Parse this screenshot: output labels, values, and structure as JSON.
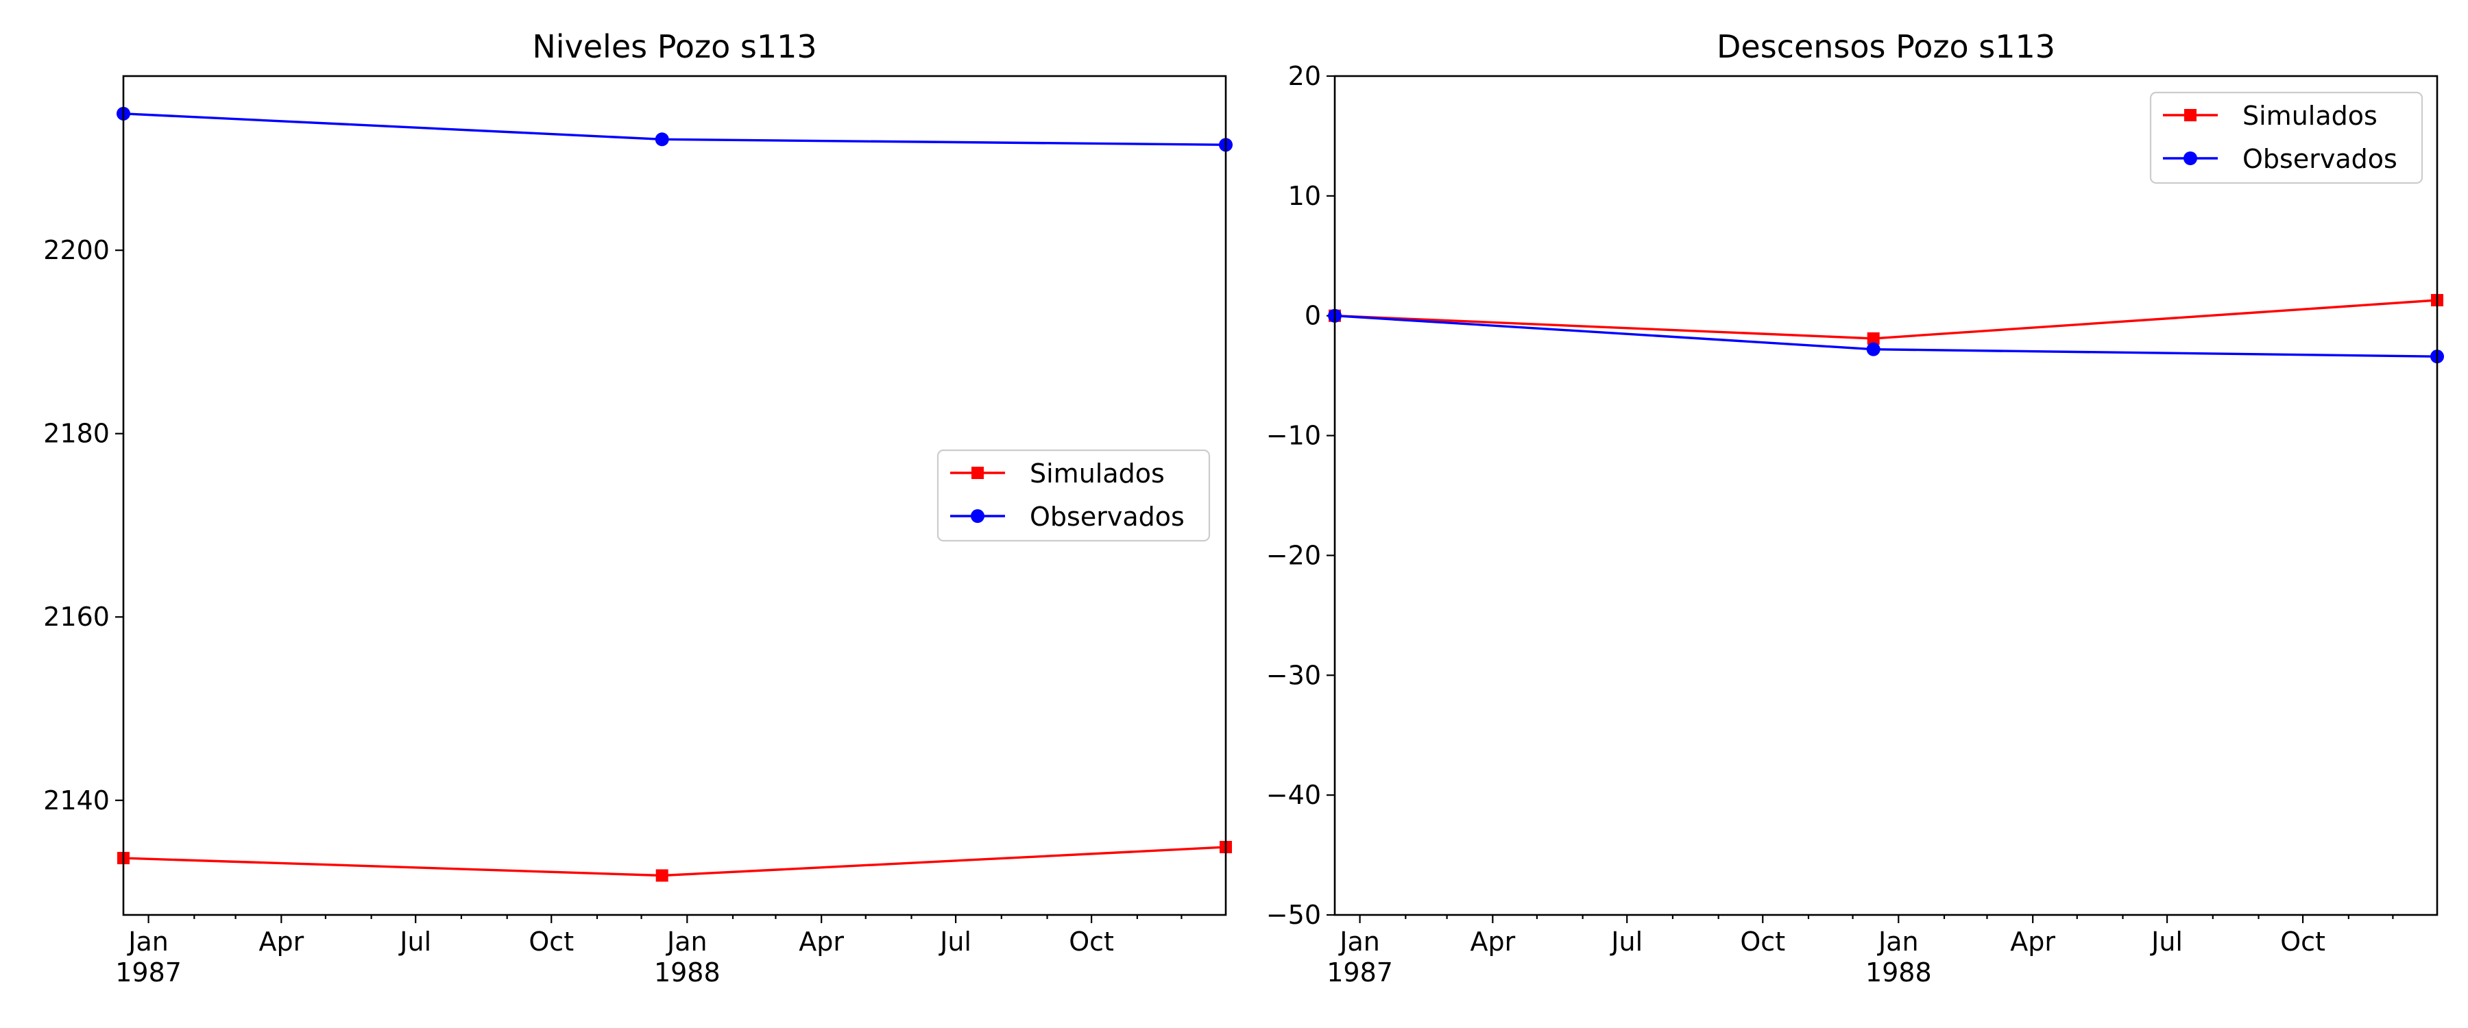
{
  "colors": {
    "simulados": "#ff0000",
    "observados": "#0000ff"
  },
  "chart_data": [
    {
      "type": "line",
      "title": "Niveles Pozo s113",
      "xlabel": "",
      "ylabel": "",
      "x_axis": "date",
      "xlim": [
        "1986-12-15",
        "1988-12-31"
      ],
      "ylim": [
        2127.5,
        2219
      ],
      "yticks": [
        2140,
        2160,
        2180,
        2200
      ],
      "xticks": [
        {
          "date": "1987-01-01",
          "label": "Jan",
          "year": "1987"
        },
        {
          "date": "1987-04-01",
          "label": "Apr",
          "year": ""
        },
        {
          "date": "1987-07-01",
          "label": "Jul",
          "year": ""
        },
        {
          "date": "1987-10-01",
          "label": "Oct",
          "year": ""
        },
        {
          "date": "1988-01-01",
          "label": "Jan",
          "year": "1988"
        },
        {
          "date": "1988-04-01",
          "label": "Apr",
          "year": ""
        },
        {
          "date": "1988-07-01",
          "label": "Jul",
          "year": ""
        },
        {
          "date": "1988-10-01",
          "label": "Oct",
          "year": ""
        }
      ],
      "legend": "center-right",
      "grid": false,
      "series": [
        {
          "name": "Simulados",
          "color": "#ff0000",
          "marker": "square",
          "points": [
            [
              "1986-12-15",
              2133.7
            ],
            [
              "1987-12-15",
              2131.8
            ],
            [
              "1988-12-31",
              2134.9
            ]
          ]
        },
        {
          "name": "Observados",
          "color": "#0000ff",
          "marker": "circle",
          "points": [
            [
              "1986-12-15",
              2214.9
            ],
            [
              "1987-12-15",
              2212.1
            ],
            [
              "1988-12-31",
              2211.5
            ]
          ]
        }
      ]
    },
    {
      "type": "line",
      "title": "Descensos Pozo s113",
      "xlabel": "",
      "ylabel": "",
      "x_axis": "date",
      "xlim": [
        "1986-12-15",
        "1988-12-31"
      ],
      "ylim": [
        -50,
        20
      ],
      "yticks": [
        -50,
        -40,
        -30,
        -20,
        -10,
        0,
        10,
        20
      ],
      "xticks": [
        {
          "date": "1987-01-01",
          "label": "Jan",
          "year": "1987"
        },
        {
          "date": "1987-04-01",
          "label": "Apr",
          "year": ""
        },
        {
          "date": "1987-07-01",
          "label": "Jul",
          "year": ""
        },
        {
          "date": "1987-10-01",
          "label": "Oct",
          "year": ""
        },
        {
          "date": "1988-01-01",
          "label": "Jan",
          "year": "1988"
        },
        {
          "date": "1988-04-01",
          "label": "Apr",
          "year": ""
        },
        {
          "date": "1988-07-01",
          "label": "Jul",
          "year": ""
        },
        {
          "date": "1988-10-01",
          "label": "Oct",
          "year": ""
        }
      ],
      "legend": "upper-right",
      "grid": false,
      "series": [
        {
          "name": "Simulados",
          "color": "#ff0000",
          "marker": "square",
          "points": [
            [
              "1986-12-15",
              0.0
            ],
            [
              "1987-12-15",
              -1.9
            ],
            [
              "1988-12-31",
              1.3
            ]
          ]
        },
        {
          "name": "Observados",
          "color": "#0000ff",
          "marker": "circle",
          "points": [
            [
              "1986-12-15",
              0.0
            ],
            [
              "1987-12-15",
              -2.8
            ],
            [
              "1988-12-31",
              -3.4
            ]
          ]
        }
      ]
    }
  ]
}
